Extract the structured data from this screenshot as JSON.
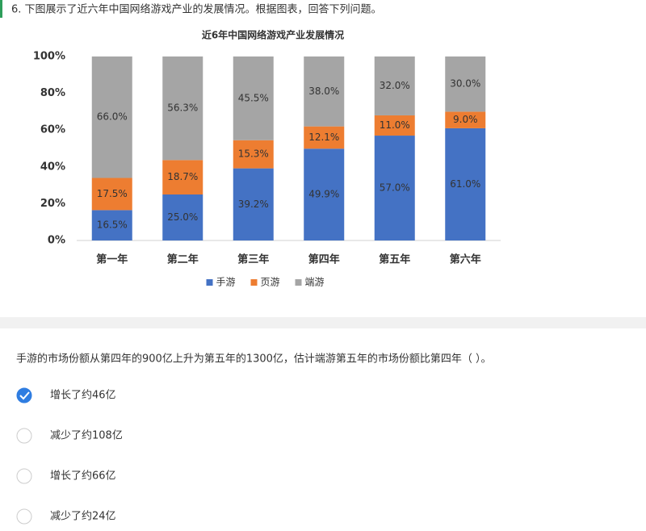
{
  "question": {
    "text": "6.  下图展示了近六年中国网络游戏产业的发展情况。根据图表，回答下列问题。"
  },
  "chart_data": {
    "type": "stacked-bar",
    "title": "近6年中国网络游戏产业发展情况",
    "categories": [
      "第一年",
      "第二年",
      "第三年",
      "第四年",
      "第五年",
      "第六年"
    ],
    "series": [
      {
        "name": "手游",
        "color": "#4472c4",
        "values": [
          16.5,
          25.0,
          39.2,
          49.9,
          57.0,
          61.0
        ],
        "value_labels": [
          "16.5%",
          "25.0%",
          "39.2%",
          "49.9%",
          "57.0%",
          "61.0%"
        ]
      },
      {
        "name": "页游",
        "color": "#ed7d31",
        "values": [
          17.5,
          18.7,
          15.3,
          12.1,
          11.0,
          9.0
        ],
        "value_labels": [
          "17.5%",
          "18.7%",
          "15.3%",
          "12.1%",
          "11.0%",
          "9.0%"
        ]
      },
      {
        "name": "端游",
        "color": "#a5a5a5",
        "values": [
          66.0,
          56.3,
          45.5,
          38.0,
          32.0,
          30.0
        ],
        "value_labels": [
          "66.0%",
          "56.3%",
          "45.5%",
          "38.0%",
          "32.0%",
          "30.0%"
        ]
      }
    ],
    "ylim": [
      0,
      100
    ],
    "yticks": [
      {
        "value": 0,
        "label": "0%"
      },
      {
        "value": 20,
        "label": "20%"
      },
      {
        "value": 40,
        "label": "40%"
      },
      {
        "value": 60,
        "label": "60%"
      },
      {
        "value": 80,
        "label": "80%"
      },
      {
        "value": 100,
        "label": "100%"
      }
    ],
    "legend": "bottom"
  },
  "prompt": "手游的市场份额从第四年的900亿上升为第五年的1300亿，估计端游第五年的市场份额比第四年（ ）。",
  "options": [
    "增长了约46亿",
    "减少了约108亿",
    "增长了约66亿",
    "减少了约24亿"
  ],
  "selected_option": 0
}
